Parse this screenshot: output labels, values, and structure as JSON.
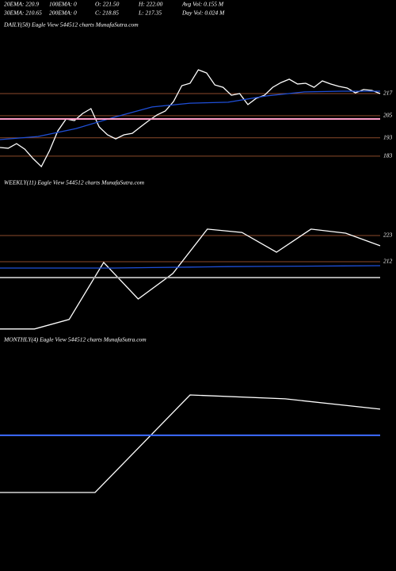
{
  "header": {
    "rows": [
      [
        "20EMA: 220.9",
        "100EMA: 0",
        "O: 221.50",
        "H: 222.00",
        "Avg Vol: 0.155  M"
      ],
      [
        "30EMA: 210.65",
        "200EMA: 0",
        "C: 218.85",
        "L: 217.35",
        "Day Vol: 0.024  M"
      ]
    ]
  },
  "chart_data": [
    {
      "type": "line",
      "title": "DAILY(58) Eagle   View  544512  charts MunafaSutra.com",
      "ylim": [
        170.9,
        250.6
      ],
      "yticks": [
        217,
        205,
        193,
        183
      ],
      "tick_color": "#8b4a2b",
      "series": [
        {
          "color": "#ffffff",
          "values": [
            187.7,
            187.3,
            189.8,
            186.8,
            181.7,
            177.3,
            186.0,
            196.7,
            203.2,
            202.3,
            206.2,
            208.8,
            198.9,
            194.6,
            192.4,
            194.6,
            195.4,
            198.9,
            202.3,
            205.4,
            207.5,
            212.7,
            221.3,
            222.6,
            229.9,
            228.2,
            221.7,
            220.4,
            216.1,
            217.0,
            211.0,
            214.4,
            216.1,
            220.4,
            223.0,
            224.8,
            222.2,
            222.6,
            220.4,
            223.9,
            222.2,
            220.9,
            220.0,
            217.4,
            219.2,
            218.7,
            217.0
          ]
        },
        {
          "color": "#1f4fd8",
          "values": [
            192.0,
            193.7,
            198.0,
            204.1,
            209.7,
            211.8,
            212.3,
            215.7,
            217.9,
            218.3,
            218.3
          ]
        },
        {
          "color": "#ff9ec8",
          "values": [
            203.2,
            203.2
          ]
        }
      ]
    },
    {
      "type": "line",
      "title": "WEEKLY(11) Eagle   View  544512  charts MunafaSutra.com",
      "ylim": [
        180.3,
        242
      ],
      "yticks": [
        223,
        212
      ],
      "tick_color": "#8b4a2b",
      "series": [
        {
          "color": "#ffffff",
          "values": [
            183.7,
            183.7,
            187.7,
            211.7,
            196.3,
            207.0,
            225.7,
            224.3,
            216.0,
            225.7,
            224.0,
            218.7
          ]
        },
        {
          "color": "#1f4fd8",
          "values": [
            209.3,
            209.3,
            209.3,
            209.3,
            209.5,
            209.7,
            209.9,
            210.0,
            210.1,
            210.2,
            210.3
          ]
        },
        {
          "color": "#aaaaaa",
          "values": [
            205.3,
            205.3
          ]
        }
      ]
    },
    {
      "type": "line",
      "title": "MONTHLY(4) Eagle   View  544512  charts MunafaSutra.com",
      "ylim": [
        0,
        100
      ],
      "yticks": [],
      "tick_color": "#8b4a2b",
      "series": [
        {
          "color": "#ffffff",
          "values": [
            30.4,
            30.4,
            77.7,
            75.8,
            70.8
          ]
        },
        {
          "color": "#3d6cff",
          "values": [
            58.1,
            58.1
          ]
        }
      ]
    }
  ]
}
